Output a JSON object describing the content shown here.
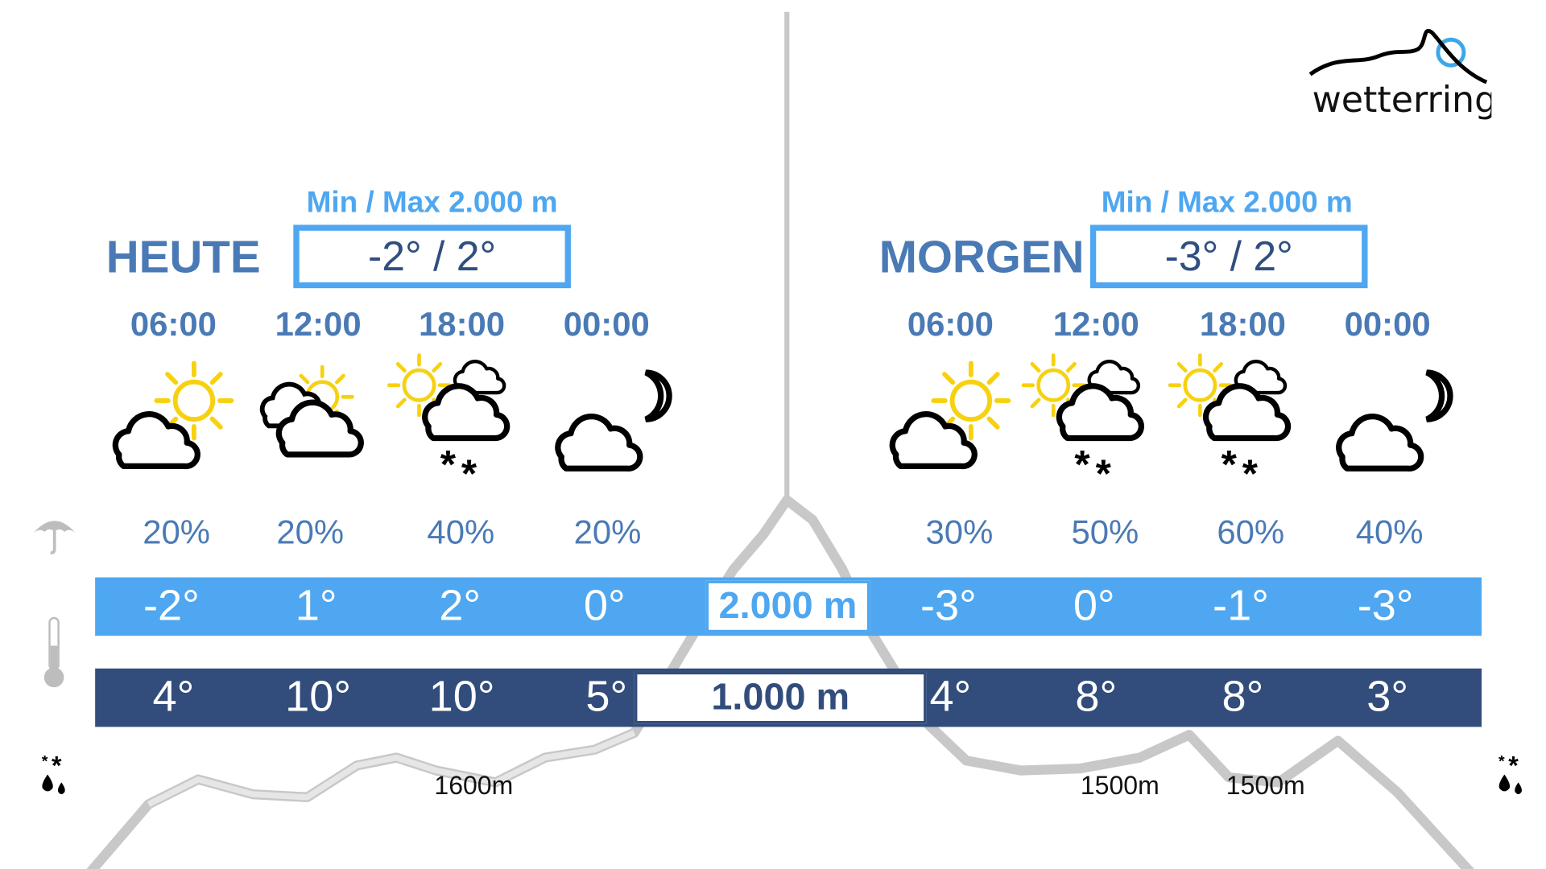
{
  "brand": {
    "name": "wetterring",
    "accent": "#3aa8e8"
  },
  "colors": {
    "label": "#4a7ab5",
    "highBar": "#4ea7f0",
    "lowBar": "#324d7b",
    "sun": "#f7d10f",
    "mountain": "#c8c8c8"
  },
  "legend": {
    "precip_icon": "umbrella-icon",
    "temp_icon": "thermometer-icon",
    "snowline_icon": "snow-rain-icon"
  },
  "today": {
    "label": "HEUTE",
    "minmax_label": "Min / Max 2.000 m",
    "minmax": "-2° / 2°",
    "slots": [
      {
        "time": "06:00",
        "icon": "sun-cloud",
        "precip": "20%",
        "t2000": "-2°",
        "t1000": "4°"
      },
      {
        "time": "12:00",
        "icon": "cloud-sun",
        "precip": "20%",
        "t2000": "1°",
        "t1000": "10°"
      },
      {
        "time": "18:00",
        "icon": "sun-cloud-snow",
        "precip": "40%",
        "t2000": "2°",
        "t1000": "10°"
      },
      {
        "time": "00:00",
        "icon": "cloud-moon",
        "precip": "20%",
        "t2000": "0°",
        "t1000": "5°"
      }
    ]
  },
  "tomorrow": {
    "label": "MORGEN",
    "minmax_label": "Min / Max 2.000 m",
    "minmax": "-3° / 2°",
    "slots": [
      {
        "time": "06:00",
        "icon": "sun-cloud",
        "precip": "30%",
        "t2000": "-3°",
        "t1000": "4°"
      },
      {
        "time": "12:00",
        "icon": "sun-cloud-snow",
        "precip": "50%",
        "t2000": "0°",
        "t1000": "8°"
      },
      {
        "time": "18:00",
        "icon": "sun-cloud-snow",
        "precip": "60%",
        "t2000": "-1°",
        "t1000": "8°"
      },
      {
        "time": "00:00",
        "icon": "cloud-moon",
        "precip": "40%",
        "t2000": "-3°",
        "t1000": "3°"
      }
    ]
  },
  "altitudes": {
    "high": "2.000 m",
    "low": "1.000 m"
  },
  "snowlines": [
    "1600m",
    "1500m",
    "1500m"
  ]
}
